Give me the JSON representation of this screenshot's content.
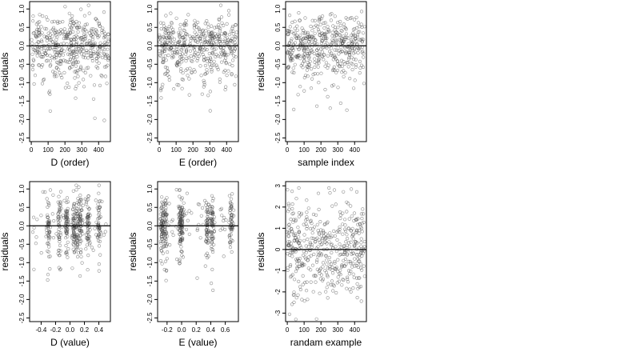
{
  "chart_data": [
    {
      "type": "scatter",
      "xlabel": "D (order)",
      "ylabel": "residuals",
      "xlim": [
        -10,
        470
      ],
      "ylim": [
        -2.6,
        1.2
      ],
      "xticks": [
        "0",
        "100",
        "200",
        "300",
        "400"
      ],
      "yticks": [
        "1.0",
        "0.5",
        "0.0",
        "-0.5",
        "-1.0",
        "-1.5",
        "-2.0",
        "-2.5"
      ],
      "hline": 0,
      "points": {
        "n": 460,
        "x_min": 0,
        "x_max": 460,
        "y_min": -2.45,
        "y_max": 1.1,
        "seed": 11
      }
    },
    {
      "type": "scatter",
      "xlabel": "E (order)",
      "ylabel": "residuals",
      "xlim": [
        -10,
        470
      ],
      "ylim": [
        -2.6,
        1.2
      ],
      "xticks": [
        "0",
        "100",
        "200",
        "300",
        "400"
      ],
      "yticks": [
        "1.0",
        "0.5",
        "0.0",
        "-0.5",
        "-1.0",
        "-1.5",
        "-2.0",
        "-2.5"
      ],
      "hline": 0,
      "points": {
        "n": 460,
        "x_min": 0,
        "x_max": 460,
        "y_min": -2.45,
        "y_max": 1.1,
        "seed": 23
      }
    },
    {
      "type": "scatter",
      "xlabel": "sample index",
      "ylabel": "residuals",
      "xlim": [
        -10,
        470
      ],
      "ylim": [
        -2.6,
        1.2
      ],
      "xticks": [
        "0",
        "100",
        "200",
        "300",
        "400"
      ],
      "yticks": [
        "1.0",
        "0.5",
        "0.0",
        "-0.5",
        "-1.0",
        "-1.5",
        "-2.0",
        "-2.5"
      ],
      "hline": 0,
      "points": {
        "n": 460,
        "x_min": 0,
        "x_max": 460,
        "y_min": -2.45,
        "y_max": 1.1,
        "seed": 37
      }
    },
    {
      "type": "scatter",
      "xlabel": "D (value)",
      "ylabel": "residuals",
      "xlim": [
        -0.56,
        0.56
      ],
      "ylim": [
        -2.6,
        1.2
      ],
      "xticks": [
        "-0.4",
        "-0.2",
        "0.0",
        "0.2",
        "0.4"
      ],
      "yticks": [
        "1.0",
        "0.5",
        "0.0",
        "-0.5",
        "-1.0",
        "-1.5",
        "-2.0",
        "-2.5"
      ],
      "hline": 0,
      "points": {
        "n": 460,
        "x_min": -0.52,
        "x_max": 0.52,
        "y_min": -2.45,
        "y_max": 1.1,
        "seed": 41,
        "clusters": [
          -0.3,
          -0.15,
          -0.05,
          0.05,
          0.1,
          0.15,
          0.25,
          0.4
        ]
      }
    },
    {
      "type": "scatter",
      "xlabel": "E (value)",
      "ylabel": "residuals",
      "xlim": [
        -0.33,
        0.78
      ],
      "ylim": [
        -2.6,
        1.2
      ],
      "xticks": [
        "-0.2",
        "0.0",
        "0.2",
        "0.4",
        "0.6"
      ],
      "yticks": [
        "1.0",
        "0.5",
        "0.0",
        "-0.5",
        "-1.0",
        "-1.5",
        "-2.0",
        "-2.5"
      ],
      "hline": 0,
      "points": {
        "n": 460,
        "x_min": -0.3,
        "x_max": 0.72,
        "y_min": -2.45,
        "y_max": 1.1,
        "seed": 53,
        "clusters": [
          -0.27,
          -0.22,
          -0.02,
          0.0,
          0.35,
          0.42,
          0.68
        ]
      }
    },
    {
      "type": "scatter",
      "xlabel": "randam example",
      "ylabel": "residuals",
      "xlim": [
        -10,
        470
      ],
      "ylim": [
        -3.4,
        3.2
      ],
      "xticks": [
        "0",
        "100",
        "200",
        "300",
        "400"
      ],
      "yticks": [
        "3",
        "2",
        "1",
        "0",
        "-1",
        "-2",
        "-3"
      ],
      "hline": 0,
      "points": {
        "n": 460,
        "x_min": 0,
        "x_max": 460,
        "y_min": -3.3,
        "y_max": 2.9,
        "seed": 67
      }
    }
  ]
}
